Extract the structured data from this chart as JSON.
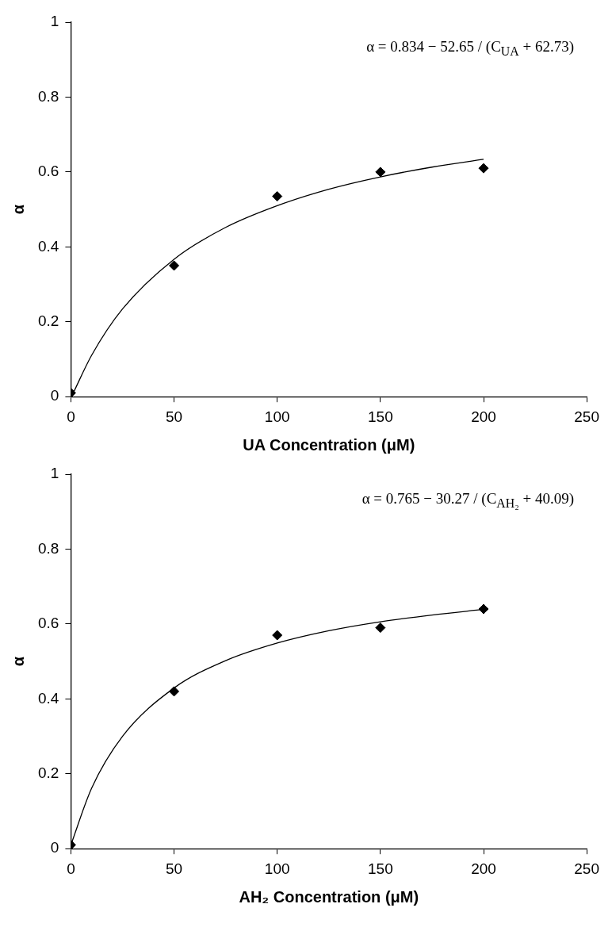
{
  "chart_data": [
    {
      "type": "scatter",
      "xlabel": "UA Concentration (μM)",
      "ylabel": "α",
      "annotations": [
        "α = 0.834 − 52.65 / (C$_{UA}$ + 62.73)"
      ],
      "xlim": [
        0,
        250
      ],
      "xticks": [
        0,
        50,
        100,
        150,
        200,
        250
      ],
      "ylim": [
        0,
        1
      ],
      "yticks": [
        0,
        0.2,
        0.4,
        0.6,
        0.8,
        1
      ],
      "grid": false,
      "legend": false,
      "series": [
        {
          "type": "scatter",
          "marker": "diamond",
          "color": "#000000",
          "x": [
            0,
            50,
            100,
            150,
            200
          ],
          "values": [
            0.01,
            0.35,
            0.535,
            0.6,
            0.61
          ]
        },
        {
          "type": "line",
          "marker": "none",
          "line_style": "solid",
          "color": "#000000",
          "x": [
            1,
            10,
            25,
            50,
            75,
            100,
            125,
            150,
            175,
            200
          ],
          "values": [
            0.008,
            0.11,
            0.234,
            0.367,
            0.452,
            0.51,
            0.554,
            0.587,
            0.613,
            0.634
          ]
        }
      ]
    },
    {
      "type": "scatter",
      "xlabel": "AH₂ Concentration (μM)",
      "ylabel": "α",
      "annotations": [
        "α = 0.765 − 30.27 / (C$_{AH₂}$ + 40.09)"
      ],
      "xlim": [
        0,
        250
      ],
      "xticks": [
        0,
        50,
        100,
        150,
        200,
        250
      ],
      "ylim": [
        0,
        1
      ],
      "yticks": [
        0,
        0.2,
        0.4,
        0.6,
        0.8,
        1
      ],
      "grid": false,
      "legend": false,
      "series": [
        {
          "type": "scatter",
          "marker": "diamond",
          "color": "#000000",
          "x": [
            0,
            50,
            100,
            150,
            200
          ],
          "values": [
            0.01,
            0.42,
            0.57,
            0.59,
            0.64
          ]
        },
        {
          "type": "line",
          "marker": "none",
          "line_style": "solid",
          "color": "#000000",
          "x": [
            0,
            10,
            25,
            50,
            75,
            100,
            125,
            150,
            175,
            200
          ],
          "values": [
            0.01,
            0.161,
            0.3,
            0.429,
            0.502,
            0.549,
            0.582,
            0.606,
            0.624,
            0.639
          ]
        }
      ]
    }
  ]
}
